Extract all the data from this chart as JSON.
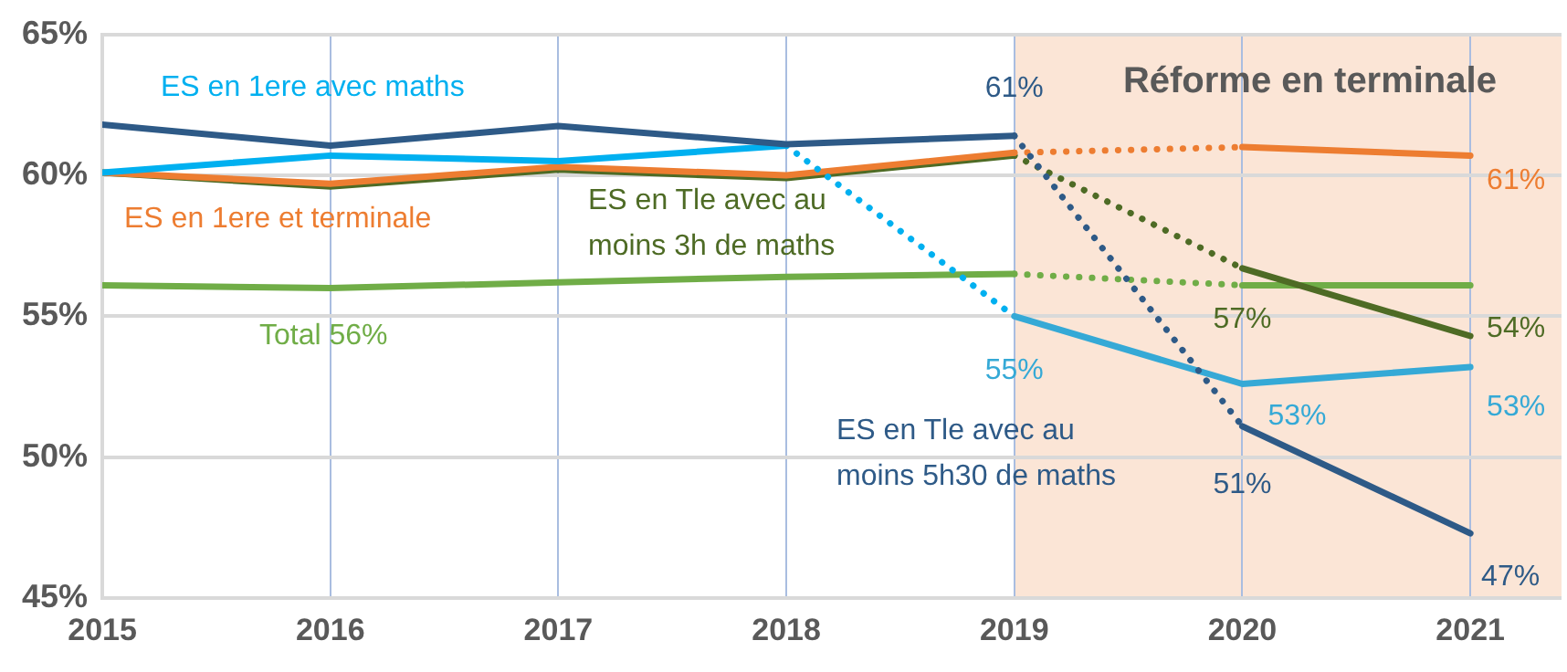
{
  "chart_data": {
    "type": "line",
    "x": [
      2015,
      2016,
      2017,
      2018,
      2019,
      2020,
      2021
    ],
    "xlim": [
      2015,
      2021.4
    ],
    "xticks": [
      2015,
      2016,
      2017,
      2018,
      2019,
      2020,
      2021
    ],
    "ylim": [
      45,
      65
    ],
    "yticks": [
      {
        "value": 45,
        "label": "45%"
      },
      {
        "value": 50,
        "label": "50%"
      },
      {
        "value": 55,
        "label": "55%"
      },
      {
        "value": 60,
        "label": "60%"
      },
      {
        "value": 65,
        "label": "65%"
      }
    ],
    "grid": true,
    "legend": false,
    "marker": "none",
    "bands": [
      {
        "axis": "x",
        "from": 2019,
        "to": 2021.4,
        "label": "Réforme en terminale",
        "color": "#fbe5d6"
      }
    ],
    "series": [
      {
        "name": "ES en Tle avec au moins 5h30 de maths",
        "color": "#2e5a87",
        "line_style": "solid",
        "values": [
          61.8,
          61.05,
          61.75,
          61.1,
          61.4,
          null,
          null
        ],
        "value_labels": [
          null,
          null,
          null,
          null,
          "61%",
          null,
          null
        ]
      },
      {
        "color": "#2e5a87",
        "line_style": "dotted",
        "values": [
          null,
          null,
          null,
          null,
          61.4,
          51.1,
          null
        ]
      },
      {
        "color": "#2e5a87",
        "line_style": "solid",
        "values": [
          null,
          null,
          null,
          null,
          null,
          51.1,
          47.3
        ],
        "value_labels": [
          null,
          null,
          null,
          null,
          null,
          "51%",
          "47%"
        ]
      },
      {
        "name": "ES en 1ere avec maths",
        "color": "#00b0f0",
        "line_style": "solid",
        "values": [
          60.1,
          60.7,
          60.5,
          61.05,
          null,
          null,
          null
        ]
      },
      {
        "color": "#00b0f0",
        "line_style": "dotted",
        "values": [
          null,
          null,
          null,
          61.05,
          55,
          null,
          null
        ]
      },
      {
        "color": "#35a9d6",
        "line_style": "solid",
        "values": [
          null,
          null,
          null,
          null,
          55,
          52.6,
          53.2
        ],
        "value_labels": [
          null,
          null,
          null,
          null,
          "55%",
          "53%",
          "53%"
        ]
      },
      {
        "name": "ES en 1ere et terminale",
        "color": "#ed7d31",
        "line_style": "solid",
        "values": [
          60.1,
          59.7,
          60.3,
          60.0,
          60.8,
          null,
          null
        ]
      },
      {
        "color": "#ed7d31",
        "line_style": "dotted",
        "values": [
          null,
          null,
          null,
          null,
          60.8,
          61.0,
          null
        ]
      },
      {
        "color": "#ed7d31",
        "line_style": "solid",
        "values": [
          null,
          null,
          null,
          null,
          null,
          61.0,
          60.7
        ],
        "value_labels": [
          null,
          null,
          null,
          null,
          null,
          null,
          "61%"
        ]
      },
      {
        "name": "ES en Tle avec au moins 3h de maths",
        "color": "#4e6b25",
        "line_style": "solid",
        "values": [
          60.1,
          59.6,
          60.2,
          59.9,
          60.7,
          null,
          null
        ]
      },
      {
        "color": "#4e6b25",
        "line_style": "dotted",
        "values": [
          null,
          null,
          null,
          null,
          60.7,
          56.7,
          null
        ]
      },
      {
        "color": "#4e6b25",
        "line_style": "solid",
        "values": [
          null,
          null,
          null,
          null,
          null,
          56.7,
          54.3
        ],
        "value_labels": [
          null,
          null,
          null,
          null,
          null,
          "57%",
          "54%"
        ]
      },
      {
        "name": "Total 56%",
        "color": "#70ad47",
        "line_style": "solid",
        "values": [
          56.1,
          56.0,
          56.2,
          56.4,
          56.5,
          null,
          null
        ]
      },
      {
        "color": "#70ad47",
        "line_style": "dotted",
        "values": [
          null,
          null,
          null,
          null,
          56.5,
          56.1,
          null
        ]
      },
      {
        "color": "#70ad47",
        "line_style": "solid",
        "values": [
          null,
          null,
          null,
          null,
          null,
          56.1,
          56.1
        ]
      }
    ]
  }
}
